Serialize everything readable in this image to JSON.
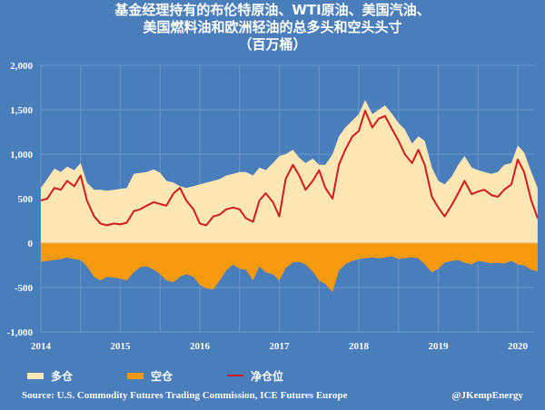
{
  "title": {
    "line1": "基金经理持有的布伦特原油、WTI原油、美国汽油、",
    "line2": "美国燃料油和欧洲轻油的总多头和空头头寸",
    "line3": "（百万桶）"
  },
  "legend": {
    "long": {
      "label": "多仓",
      "color": "#fde7b5"
    },
    "short": {
      "label": "空仓",
      "color": "#f7990c"
    },
    "net": {
      "label": "净仓位",
      "color": "#d11a1a"
    }
  },
  "footer": {
    "source": "Source: U.S. Commodity Futures Trading Commission, ICE Futures Europe",
    "credit": "@JKempEnergy"
  },
  "colors": {
    "background": "#4a7ebb",
    "grid": "#6b95c9",
    "long_fill": "#fde7b5",
    "short_fill": "#f7990c",
    "net_line": "#d11a1a"
  },
  "chart_data": {
    "type": "area",
    "title": "基金经理持有的布伦特原油、WTI原油、美国汽油、美国燃料油和欧洲轻油的总多头和空头头寸（百万桶）",
    "xlabel": "",
    "ylabel": "百万桶",
    "ylim": [
      -1000,
      2000
    ],
    "xlim": [
      2014.0,
      2020.3
    ],
    "grid": true,
    "legend_position": "bottom",
    "y_ticks": [
      "2,000",
      "1,500",
      "1,000",
      "500",
      "0",
      "-500",
      "-1,000"
    ],
    "y_tick_values": [
      2000,
      1500,
      1000,
      500,
      0,
      -500,
      -1000
    ],
    "x_ticks": [
      "2014",
      "2015",
      "2016",
      "2017",
      "2018",
      "2019",
      "2020"
    ],
    "x": [
      2014.0,
      2014.08,
      2014.17,
      2014.25,
      2014.33,
      2014.42,
      2014.5,
      2014.58,
      2014.67,
      2014.75,
      2014.83,
      2014.92,
      2015.0,
      2015.08,
      2015.17,
      2015.25,
      2015.33,
      2015.42,
      2015.5,
      2015.58,
      2015.67,
      2015.75,
      2015.83,
      2015.92,
      2016.0,
      2016.08,
      2016.17,
      2016.25,
      2016.33,
      2016.42,
      2016.5,
      2016.58,
      2016.67,
      2016.75,
      2016.83,
      2016.92,
      2017.0,
      2017.08,
      2017.17,
      2017.25,
      2017.33,
      2017.42,
      2017.5,
      2017.58,
      2017.67,
      2017.75,
      2017.83,
      2017.92,
      2018.0,
      2018.08,
      2018.17,
      2018.25,
      2018.33,
      2018.42,
      2018.5,
      2018.58,
      2018.67,
      2018.75,
      2018.83,
      2018.92,
      2019.0,
      2019.08,
      2019.17,
      2019.25,
      2019.33,
      2019.42,
      2019.5,
      2019.58,
      2019.67,
      2019.75,
      2019.83,
      2019.92,
      2020.0,
      2020.08,
      2020.17,
      2020.25
    ],
    "series": [
      {
        "name": "多仓",
        "values": [
          620,
          720,
          840,
          800,
          860,
          820,
          900,
          680,
          600,
          600,
          590,
          600,
          610,
          620,
          780,
          790,
          800,
          830,
          790,
          700,
          680,
          640,
          620,
          640,
          660,
          680,
          700,
          720,
          760,
          780,
          800,
          800,
          760,
          850,
          820,
          900,
          980,
          1000,
          1050,
          960,
          900,
          950,
          880,
          880,
          1000,
          1200,
          1300,
          1380,
          1450,
          1610,
          1450,
          1500,
          1550,
          1450,
          1350,
          1280,
          1120,
          1200,
          1150,
          850,
          700,
          660,
          750,
          880,
          980,
          850,
          820,
          800,
          780,
          800,
          880,
          900,
          1100,
          1020,
          800,
          620
        ]
      },
      {
        "name": "空仓",
        "values": [
          -210,
          -200,
          -190,
          -180,
          -160,
          -180,
          -190,
          -260,
          -380,
          -420,
          -380,
          -390,
          -400,
          -420,
          -330,
          -270,
          -260,
          -300,
          -350,
          -420,
          -440,
          -380,
          -350,
          -380,
          -470,
          -510,
          -520,
          -420,
          -310,
          -240,
          -290,
          -300,
          -420,
          -260,
          -330,
          -350,
          -420,
          -280,
          -220,
          -210,
          -240,
          -320,
          -420,
          -460,
          -550,
          -310,
          -240,
          -200,
          -180,
          -170,
          -160,
          -170,
          -160,
          -150,
          -180,
          -170,
          -160,
          -170,
          -240,
          -330,
          -290,
          -220,
          -200,
          -190,
          -220,
          -240,
          -200,
          -210,
          -230,
          -220,
          -230,
          -200,
          -240,
          -250,
          -300,
          -320
        ]
      },
      {
        "name": "净仓位",
        "values": [
          480,
          500,
          620,
          600,
          700,
          640,
          760,
          480,
          300,
          220,
          200,
          220,
          210,
          230,
          360,
          380,
          420,
          460,
          440,
          420,
          560,
          620,
          480,
          380,
          220,
          200,
          300,
          320,
          380,
          400,
          380,
          280,
          240,
          480,
          560,
          460,
          300,
          720,
          880,
          760,
          600,
          700,
          820,
          620,
          500,
          880,
          1050,
          1200,
          1260,
          1490,
          1300,
          1400,
          1430,
          1280,
          1150,
          1000,
          900,
          1050,
          880,
          520,
          400,
          300,
          430,
          560,
          700,
          550,
          580,
          600,
          540,
          520,
          600,
          660,
          940,
          800,
          480,
          280
        ]
      }
    ]
  }
}
